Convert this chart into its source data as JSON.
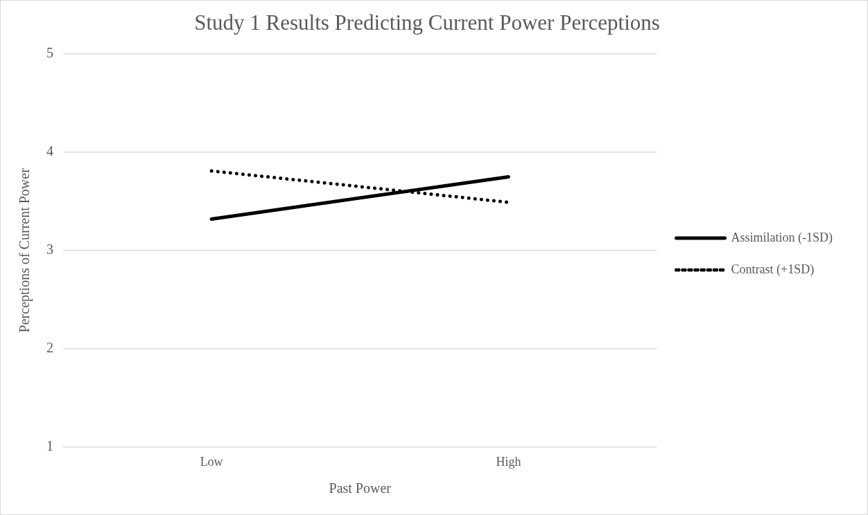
{
  "chart_data": {
    "type": "line",
    "title": "Study 1 Results Predicting Current Power Perceptions",
    "xlabel": "Past Power",
    "ylabel": "Perceptions of Current Power",
    "categories": [
      "Low",
      "High"
    ],
    "series": [
      {
        "name": "Assimilation (-1SD)",
        "color": "#000000",
        "line_style": "solid",
        "values": [
          3.32,
          3.75
        ]
      },
      {
        "name": "Contrast (+1SD)",
        "color": "#000000",
        "line_style": "dotted",
        "values": [
          3.81,
          3.49
        ]
      }
    ],
    "ylim": [
      1,
      5
    ],
    "yticks": [
      1,
      2,
      3,
      4,
      5
    ],
    "grid": "y",
    "legend": "right",
    "marker": "none"
  }
}
